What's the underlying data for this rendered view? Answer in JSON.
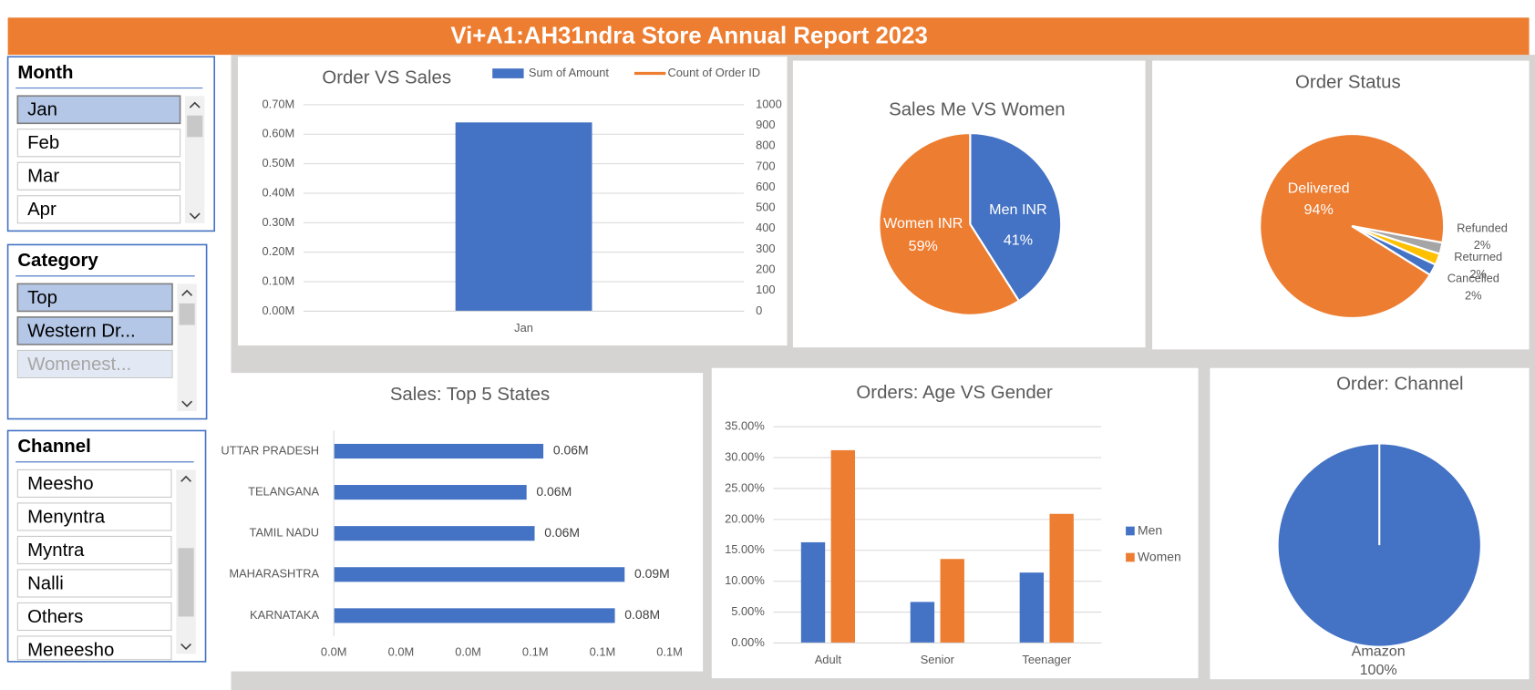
{
  "title": "Vi+A1:AH31ndra Store Annual Report 2023",
  "slicers": [
    {
      "title": "Month",
      "items": [
        {
          "label": "Jan",
          "selected": true
        },
        {
          "label": "Feb",
          "selected": false
        },
        {
          "label": "Mar",
          "selected": false
        },
        {
          "label": "Apr",
          "selected": false
        }
      ]
    },
    {
      "title": "Category",
      "items": [
        {
          "label": "Top",
          "selected": true
        },
        {
          "label": "Western Dr...",
          "selected": true
        },
        {
          "label": "Womenest...",
          "selected": false
        }
      ]
    },
    {
      "title": "Channel",
      "items": [
        {
          "label": "Meesho",
          "selected": false
        },
        {
          "label": "Menyntra",
          "selected": false
        },
        {
          "label": "Myntra",
          "selected": false
        },
        {
          "label": "Nalli",
          "selected": false
        },
        {
          "label": "Others",
          "selected": false
        },
        {
          "label": "Meneesho",
          "selected": false
        }
      ]
    }
  ],
  "chart_data": [
    {
      "type": "bar",
      "title": "Order VS Sales",
      "categories": [
        "Jan"
      ],
      "series": [
        {
          "name": "Sum of Amount",
          "color": "#4472c4",
          "values": [
            640000
          ]
        },
        {
          "name": "Count of Order ID",
          "color": "#ed7d31",
          "type": "line",
          "axis": "y2",
          "values": [
            null
          ]
        }
      ],
      "ylim": [
        0,
        700000
      ],
      "yticks": [
        {
          "value": 0,
          "label": "0.00M"
        },
        {
          "value": 100000,
          "label": "0.10M"
        },
        {
          "value": 200000,
          "label": "0.20M"
        },
        {
          "value": 300000,
          "label": "0.30M"
        },
        {
          "value": 400000,
          "label": "0.40M"
        },
        {
          "value": 500000,
          "label": "0.50M"
        },
        {
          "value": 600000,
          "label": "0.60M"
        },
        {
          "value": 700000,
          "label": "0.70M"
        }
      ],
      "y2lim": [
        0,
        1000
      ],
      "y2ticks": [
        0,
        100,
        200,
        300,
        400,
        500,
        600,
        700,
        800,
        900,
        1000
      ],
      "grid": true,
      "legend": "top"
    },
    {
      "type": "pie",
      "title": "Sales Me VS Women",
      "categories": [
        "Men INR",
        "Women INR"
      ],
      "values": [
        41,
        59
      ],
      "value_labels": [
        "41%",
        "59%"
      ],
      "colors": [
        "#4472c4",
        "#ed7d31"
      ]
    },
    {
      "type": "pie",
      "title": "Order Status",
      "categories": [
        "Delivered",
        "Refunded",
        "Returned",
        "Cancelled"
      ],
      "values": [
        94,
        2,
        2,
        2
      ],
      "value_labels": [
        "94%",
        "2%",
        "2%",
        "2%"
      ],
      "colors": [
        "#ed7d31",
        "#a5a5a5",
        "#ffc000",
        "#4472c4"
      ]
    },
    {
      "type": "hbar",
      "title": "Sales: Top 5 States",
      "categories": [
        "UTTAR PRADESH",
        "TELANGANA",
        "TAMIL NADU",
        "MAHARASHTRA",
        "KARNATAKA"
      ],
      "values": [
        62400,
        57400,
        59800,
        86600,
        83700
      ],
      "value_labels": [
        "0.06M",
        "0.06M",
        "0.06M",
        "0.09M",
        "0.08M"
      ],
      "color": "#4472c4",
      "xlim": [
        0,
        100000
      ],
      "xticks": [
        {
          "value": 0,
          "label": "0.0M"
        },
        {
          "value": 20000,
          "label": "0.0M"
        },
        {
          "value": 40000,
          "label": "0.0M"
        },
        {
          "value": 60000,
          "label": "0.1M"
        },
        {
          "value": 80000,
          "label": "0.1M"
        },
        {
          "value": 100000,
          "label": "0.1M"
        }
      ]
    },
    {
      "type": "bar",
      "title": "Orders: Age VS Gender",
      "categories": [
        "Adult",
        "Senior",
        "Teenager"
      ],
      "series": [
        {
          "name": "Men",
          "color": "#4472c4",
          "values": [
            16.3,
            6.65,
            11.4
          ]
        },
        {
          "name": "Women",
          "color": "#ed7d31",
          "values": [
            31.2,
            13.6,
            20.9
          ]
        }
      ],
      "ylim": [
        0,
        35
      ],
      "yticks": [
        {
          "value": 0,
          "label": "0.00%"
        },
        {
          "value": 5,
          "label": "5.00%"
        },
        {
          "value": 10,
          "label": "10.00%"
        },
        {
          "value": 15,
          "label": "15.00%"
        },
        {
          "value": 20,
          "label": "20.00%"
        },
        {
          "value": 25,
          "label": "25.00%"
        },
        {
          "value": 30,
          "label": "30.00%"
        },
        {
          "value": 35,
          "label": "35.00%"
        }
      ],
      "grid": true,
      "legend": "right"
    },
    {
      "type": "pie",
      "title": "Order: Channel",
      "categories": [
        "Amazon"
      ],
      "values": [
        100
      ],
      "value_labels": [
        "100%"
      ],
      "colors": [
        "#4472c4"
      ]
    }
  ]
}
